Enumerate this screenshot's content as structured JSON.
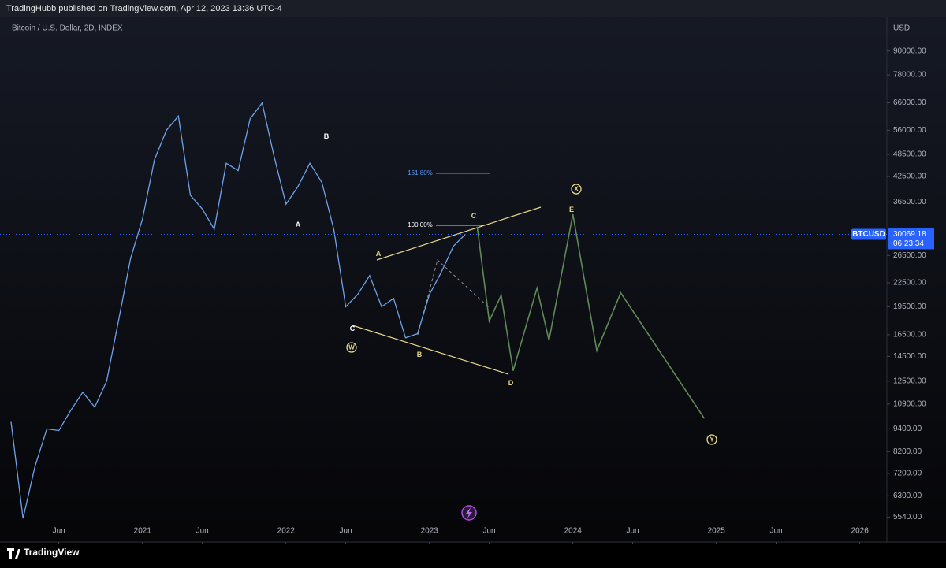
{
  "header": {
    "text": "TradingHubb published on TradingView.com, Apr 12, 2023 13:36 UTC-4"
  },
  "footer": {
    "brand": "TradingView"
  },
  "chart_data": {
    "type": "line",
    "title": "Bitcoin / U.S. Dollar, 2D, INDEX",
    "y_label": "USD",
    "log_scale": true,
    "grid": false,
    "x": [
      "2020-02",
      "2020-03",
      "2020-04",
      "2020-05",
      "2020-06",
      "2020-07",
      "2020-08",
      "2020-09",
      "2020-10",
      "2020-11",
      "2020-12",
      "2021-01",
      "2021-02",
      "2021-03",
      "2021-04",
      "2021-05",
      "2021-06",
      "2021-07",
      "2021-08",
      "2021-09",
      "2021-10",
      "2021-11",
      "2021-12",
      "2022-01",
      "2022-02",
      "2022-03",
      "2022-04",
      "2022-05",
      "2022-06",
      "2022-07",
      "2022-08",
      "2022-09",
      "2022-10",
      "2022-11",
      "2022-12",
      "2023-01",
      "2023-02",
      "2023-03",
      "2023-04",
      "2023-05",
      "2023-06",
      "2023-07",
      "2023-08",
      "2023-10",
      "2023-11",
      "2024-01",
      "2024-03",
      "2024-05",
      "2024-12"
    ],
    "series": [
      {
        "name": "BTCUSD",
        "color": "#6ea2e8",
        "values": [
          9800,
          5500,
          7500,
          9400,
          9300,
          10500,
          11700,
          10700,
          12500,
          18000,
          26000,
          33000,
          47000,
          56000,
          61000,
          38000,
          35000,
          31000,
          46000,
          44000,
          60000,
          66000,
          48000,
          36000,
          40000,
          46000,
          41000,
          31000,
          19500,
          21000,
          23500,
          19500,
          20500,
          16200,
          16600,
          21000,
          24000,
          28000,
          30069.18,
          null,
          null,
          null,
          null,
          null,
          null,
          null,
          null,
          null,
          null
        ]
      },
      {
        "color": "#5f8a55",
        "values": [
          null,
          null,
          null,
          null,
          null,
          null,
          null,
          null,
          null,
          null,
          null,
          null,
          null,
          null,
          null,
          null,
          null,
          null,
          null,
          null,
          null,
          null,
          null,
          null,
          null,
          null,
          null,
          null,
          null,
          null,
          null,
          null,
          null,
          null,
          null,
          null,
          null,
          null,
          null,
          31450,
          17900,
          20900,
          13300,
          21800,
          15950,
          33900,
          15000,
          21200,
          10000
        ]
      }
    ],
    "countdown": "06:23:34",
    "xlim": [
      "2020-02",
      "2026-03"
    ],
    "xticks": [
      {
        "value": "2020-06",
        "label": "Jun"
      },
      {
        "value": "2021-01",
        "label": "2021"
      },
      {
        "value": "2021-06",
        "label": "Jun"
      },
      {
        "value": "2022-01",
        "label": "2022"
      },
      {
        "value": "2022-06",
        "label": "Jun"
      },
      {
        "value": "2023-01",
        "label": "2023"
      },
      {
        "value": "2023-06",
        "label": "Jun"
      },
      {
        "value": "2024-01",
        "label": "2024"
      },
      {
        "value": "2024-06",
        "label": "Jun"
      },
      {
        "value": "2025-01",
        "label": "2025"
      },
      {
        "value": "2025-06",
        "label": "Jun"
      },
      {
        "value": "2026-01",
        "label": "2026"
      }
    ],
    "ylim": [
      5400,
      108000
    ],
    "yticks": [
      {
        "value": 90000,
        "label": "90000.00"
      },
      {
        "value": 78000,
        "label": "78000.00"
      },
      {
        "value": 66000,
        "label": "66000.00"
      },
      {
        "value": 56000,
        "label": "56000.00"
      },
      {
        "value": 48500,
        "label": "48500.00"
      },
      {
        "value": 42500,
        "label": "42500.00"
      },
      {
        "value": 36500,
        "label": "36500.00"
      },
      {
        "value": 26500,
        "label": "26500.00"
      },
      {
        "value": 22500,
        "label": "22500.00"
      },
      {
        "value": 19500,
        "label": "19500.00"
      },
      {
        "value": 16500,
        "label": "16500.00"
      },
      {
        "value": 14500,
        "label": "14500.00"
      },
      {
        "value": 12500,
        "label": "12500.00"
      },
      {
        "value": 10900,
        "label": "10900.00"
      },
      {
        "value": 9400,
        "label": "9400.00"
      },
      {
        "value": 8200,
        "label": "8200.00"
      },
      {
        "value": 7200,
        "label": "7200.00"
      },
      {
        "value": 6300,
        "label": "6300.00"
      },
      {
        "value": 5540,
        "label": "5540.00"
      }
    ],
    "fib_levels": [
      "161.80%",
      "100.00%"
    ],
    "wave_labels": [
      "B",
      "A",
      "C",
      "A",
      "B",
      "C",
      "D",
      "E",
      "W",
      "X",
      "Y"
    ]
  }
}
